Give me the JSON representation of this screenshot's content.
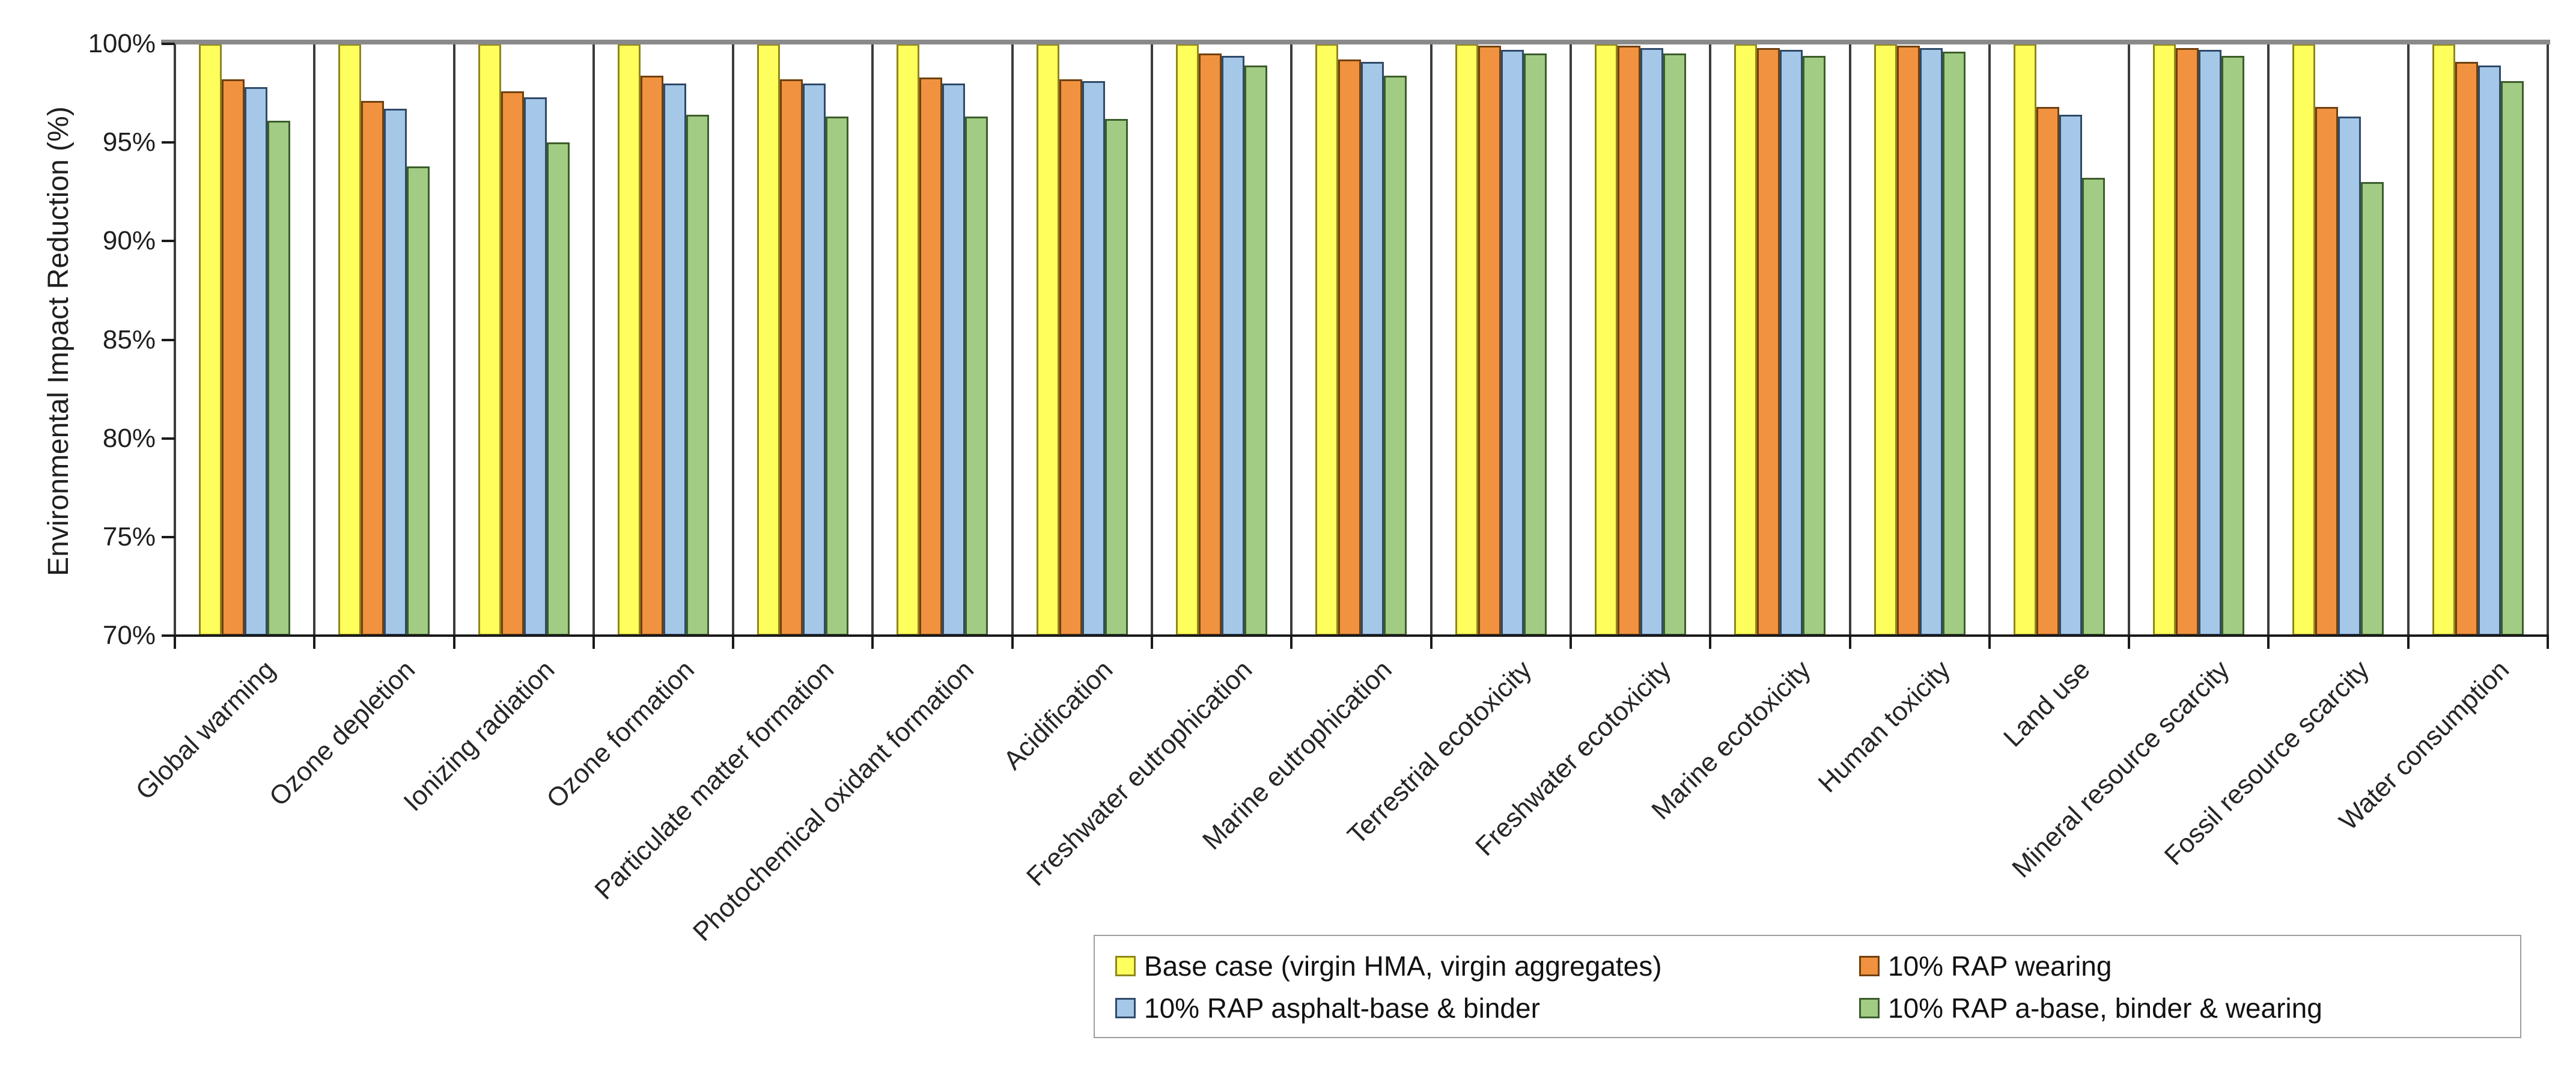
{
  "chart_data": {
    "type": "bar",
    "title": "",
    "xlabel": "",
    "ylabel": "Environmental Impact Reduction (%)",
    "ylim": [
      70,
      100
    ],
    "ytick_labels": [
      "100%",
      "95%",
      "90%",
      "85%",
      "80%",
      "75%",
      "70%"
    ],
    "grid": "vertical-category-separators-only",
    "legend_position": "bottom-right",
    "categories": [
      "Global warming",
      "Ozone depletion",
      "Ionizing radiation",
      "Ozone formation",
      "Particulate matter formation",
      "Photochemical oxidant formation",
      "Acidification",
      "Freshwater eutrophication",
      "Marine eutrophication",
      "Terrestrial ecotoxicity",
      "Freshwater ecotoxicity",
      "Marine ecotoxicity",
      "Human toxicity",
      "Land use",
      "Mineral resource scarcity",
      "Fossil resource scarcity",
      "Water consumption"
    ],
    "series": [
      {
        "name": "Base case (virgin HMA, virgin aggregates)",
        "fill": "#FEFE5C",
        "border": "#8F871B",
        "values": [
          100,
          100,
          100,
          100,
          100,
          100,
          100,
          100,
          100,
          100,
          100,
          100,
          100,
          100,
          100,
          100,
          100
        ]
      },
      {
        "name": "10% RAP wearing",
        "fill": "#F0923F",
        "border": "#70400E",
        "values": [
          98.2,
          97.1,
          97.6,
          98.4,
          98.2,
          98.3,
          98.2,
          99.5,
          99.2,
          99.9,
          99.9,
          99.8,
          99.9,
          96.8,
          99.8,
          96.8,
          99.1
        ]
      },
      {
        "name": "10% RAP asphalt-base & binder",
        "fill": "#A6C8E8",
        "border": "#2F4A69",
        "values": [
          97.8,
          96.7,
          97.3,
          98.0,
          98.0,
          98.0,
          98.1,
          99.4,
          99.1,
          99.7,
          99.8,
          99.7,
          99.8,
          96.4,
          99.7,
          96.3,
          98.9
        ]
      },
      {
        "name": "10% RAP a-base, binder & wearing",
        "fill": "#A2CB84",
        "border": "#3B5D2B",
        "values": [
          96.1,
          93.8,
          95.0,
          96.4,
          96.3,
          96.3,
          96.2,
          98.9,
          98.4,
          99.5,
          99.5,
          99.4,
          99.6,
          93.2,
          99.4,
          93.0,
          98.1
        ]
      }
    ],
    "colors": {
      "category_separator": "#3C3C3C",
      "top_border": "#8A8A8A",
      "axis": "#1A1A1A",
      "text": "#1F1F1F"
    }
  }
}
